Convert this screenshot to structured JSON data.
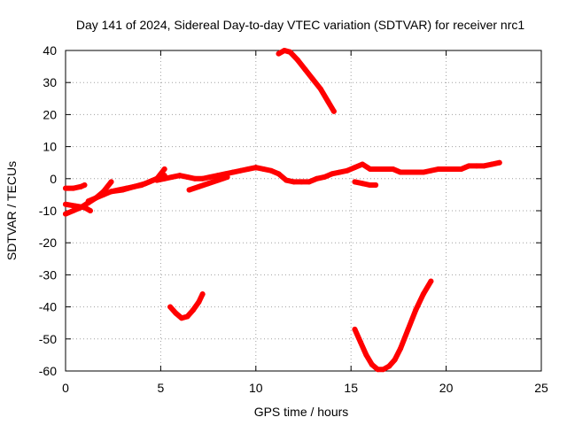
{
  "chart_data": {
    "type": "scatter",
    "title": "Day 141 of 2024, Sidereal Day-to-day VTEC variation (SDTVAR) for receiver nrc1",
    "xlabel": "GPS time / hours",
    "ylabel": "SDTVAR / TECUs",
    "xlim": [
      0,
      25
    ],
    "ylim": [
      -60,
      40
    ],
    "x_ticks": [
      0,
      5,
      10,
      15,
      20,
      25
    ],
    "y_ticks": [
      -60,
      -50,
      -40,
      -30,
      -20,
      -10,
      0,
      10,
      20,
      30,
      40
    ],
    "grid": true,
    "series_color": "#ff0000",
    "series": [
      {
        "x": [
          0,
          0.4,
          0.8,
          1.0
        ],
        "y": [
          -3,
          -3,
          -2.5,
          -2
        ]
      },
      {
        "x": [
          0,
          0.5,
          1.0,
          1.3
        ],
        "y": [
          -8,
          -8.5,
          -9,
          -10
        ]
      },
      {
        "x": [
          0,
          0.4,
          0.8,
          1.2,
          1.6,
          2.0,
          2.4,
          2.8,
          3.2,
          3.6,
          4.0,
          4.4,
          4.8,
          5.2
        ],
        "y": [
          -11,
          -10,
          -9,
          -7.5,
          -6,
          -5,
          -4,
          -3.5,
          -3,
          -2.5,
          -2,
          -1,
          0,
          1
        ]
      },
      {
        "x": [
          1.2,
          1.6,
          2.0,
          2.4
        ],
        "y": [
          -7,
          -6,
          -4,
          -1
        ]
      },
      {
        "x": [
          2.4,
          3.0,
          3.6,
          4.2,
          4.8,
          5.2
        ],
        "y": [
          -4,
          -3.5,
          -2.5,
          -1.5,
          0,
          3
        ]
      },
      {
        "x": [
          4.8,
          5.2,
          5.6,
          6.0,
          6.4,
          6.8,
          7.2,
          7.6,
          8.0,
          8.4,
          8.8,
          9.2,
          9.6,
          10.0,
          10.4,
          10.8,
          11.2,
          11.6,
          12.0,
          12.4,
          12.8,
          13.2,
          13.6,
          14.0,
          14.4,
          14.8,
          15.2,
          15.6,
          16.0,
          16.4,
          16.8,
          17.2,
          17.6,
          18.0,
          18.4,
          18.8,
          19.2,
          19.6,
          20.0,
          20.4,
          20.8,
          21.2,
          21.6,
          22.0,
          22.4,
          22.8
        ],
        "y": [
          -0.5,
          0,
          0.5,
          1,
          0.5,
          0,
          0,
          0.5,
          1,
          1.5,
          2,
          2.5,
          3,
          3.5,
          3,
          2.5,
          1.5,
          -0.5,
          -1,
          -1,
          -1,
          0,
          0.5,
          1.5,
          2,
          2.5,
          3.5,
          4.5,
          3,
          3,
          3,
          3,
          2,
          2,
          2,
          2,
          2.5,
          3,
          3,
          3,
          3,
          4,
          4,
          4,
          4.5,
          5
        ]
      },
      {
        "x": [
          6.5,
          7.0,
          7.5,
          8.0,
          8.5
        ],
        "y": [
          -3.5,
          -2.5,
          -1.5,
          -0.5,
          0.5
        ]
      },
      {
        "x": [
          11.2,
          11.5,
          11.8,
          12.2,
          12.6,
          13.0,
          13.4,
          13.8,
          14.1
        ],
        "y": [
          39,
          40,
          39.5,
          37,
          34,
          31,
          28,
          24,
          21
        ]
      },
      {
        "x": [
          5.5,
          5.8,
          6.1,
          6.4,
          6.7,
          7.0,
          7.2
        ],
        "y": [
          -40,
          -42,
          -43.5,
          -43,
          -41,
          -38.5,
          -36
        ]
      },
      {
        "x": [
          15.2,
          15.5,
          15.8,
          16.1,
          16.4,
          16.7,
          17.0,
          17.3,
          17.6,
          18.0,
          18.4,
          18.8,
          19.2
        ],
        "y": [
          -47,
          -51,
          -55,
          -58,
          -59.5,
          -59.5,
          -58.5,
          -56.5,
          -53,
          -47,
          -41,
          -36,
          -32
        ]
      },
      {
        "x": [
          15.2,
          15.6,
          16.0,
          16.3
        ],
        "y": [
          -1,
          -1.5,
          -2,
          -2
        ]
      }
    ]
  }
}
